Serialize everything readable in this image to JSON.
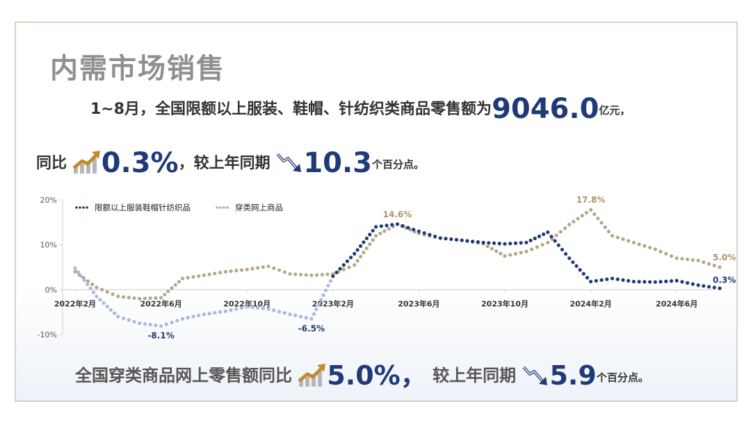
{
  "title": "内需市场销售",
  "line1": {
    "prefix": "1~8月，全国限额以上服装、鞋帽、针纺织类商品零售额为",
    "value": "9046.0",
    "unit": "亿元，"
  },
  "line2": {
    "prefix": "同比",
    "growth": "0.3%",
    "mid": "，较上年同期",
    "drop": "10.3",
    "unit": "个百分点。"
  },
  "line3": {
    "prefix": "全国穿类商品网上零售额同比",
    "growth": "5.0%，",
    "mid": "较上年同期",
    "drop": "5.9",
    "unit": "个百分点。"
  },
  "colors": {
    "series1": "#1f3a78",
    "series2": "#b5a88a",
    "series1_light": "#aab8dc",
    "accent_up": "#c08a30",
    "accent_down": "#1f3a78"
  },
  "icons": {
    "up": "up-trend-arrow-icon",
    "down": "down-trend-arrow-icon"
  },
  "chart_data": {
    "type": "line",
    "ylim": [
      -10,
      20
    ],
    "yticks": [
      "20%",
      "10%",
      "0%",
      "-10%"
    ],
    "xticks": [
      {
        "i": 0,
        "label": "2022年2月"
      },
      {
        "i": 4,
        "label": "2022年6月"
      },
      {
        "i": 8,
        "label": "2022年10月"
      },
      {
        "i": 12,
        "label": "2023年2月"
      },
      {
        "i": 16,
        "label": "2023年6月"
      },
      {
        "i": 20,
        "label": "2023年10月"
      },
      {
        "i": 24,
        "label": "2024年2月"
      },
      {
        "i": 28,
        "label": "2024年6月"
      }
    ],
    "legend_position": "top-left",
    "series": [
      {
        "name": "限额以上服装鞋帽针纺织品",
        "values": [
          4.8,
          -1.5,
          -6.0,
          -7.5,
          -8.1,
          -6.5,
          -5.5,
          -4.8,
          -3.8,
          -4.3,
          -5.5,
          -6.5,
          3.0,
          8.0,
          14.0,
          14.6,
          13.0,
          11.5,
          11.0,
          10.5,
          10.2,
          10.5,
          12.8,
          7.0,
          1.8,
          2.5,
          1.8,
          1.7,
          2.0,
          1.0,
          0.3
        ]
      },
      {
        "name": "穿类网上商品",
        "values": [
          4.0,
          0.5,
          -1.5,
          -2.0,
          -1.8,
          2.5,
          3.2,
          4.0,
          4.5,
          5.2,
          3.5,
          3.2,
          3.5,
          5.5,
          12.0,
          14.6,
          12.5,
          11.5,
          11.0,
          10.2,
          7.5,
          8.5,
          10.5,
          14.5,
          17.8,
          12.0,
          10.5,
          9.0,
          7.0,
          6.5,
          5.0
        ]
      }
    ],
    "annotations": [
      {
        "series": 0,
        "i": 4,
        "text": "-8.1%"
      },
      {
        "series": 0,
        "i": 11,
        "text": "-6.5%"
      },
      {
        "series": 1,
        "i": 15,
        "text": "14.6%"
      },
      {
        "series": 1,
        "i": 24,
        "text": "17.8%"
      },
      {
        "series": 1,
        "i": 30,
        "text": "5.0%"
      },
      {
        "series": 0,
        "i": 30,
        "text": "0.3%"
      }
    ]
  }
}
